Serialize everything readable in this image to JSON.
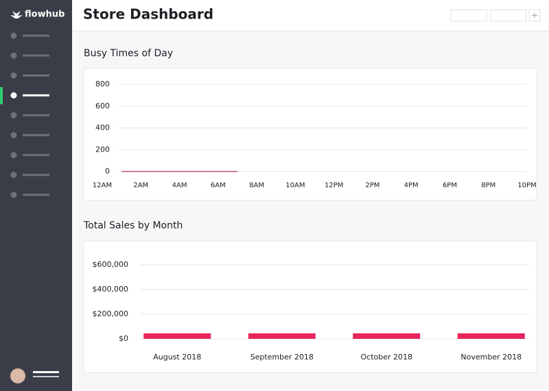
{
  "app": {
    "logo": "flowhub",
    "title": "Store Dashboard"
  },
  "chart_data": [
    {
      "type": "line",
      "title": "Busy Times of Day",
      "categories": [
        "12AM",
        null,
        "2AM",
        null,
        "4AM",
        null,
        "6AM",
        null,
        "8AM",
        null,
        "10AM",
        null,
        "12PM",
        null,
        "2PM",
        null,
        "4PM",
        null,
        "6PM",
        null,
        "8PM",
        null,
        "10PM",
        null
      ],
      "values": [
        null,
        0,
        0,
        0,
        0,
        0,
        0,
        0,
        null,
        null,
        null,
        null,
        null,
        null,
        null,
        null,
        null,
        null,
        null,
        null,
        null,
        null,
        null,
        null
      ],
      "color": "#b5506a",
      "ylim": [
        0,
        800
      ],
      "yticks": [
        0,
        200,
        400,
        600,
        800
      ],
      "grid": true
    },
    {
      "type": "bar",
      "title": "Total Sales by Month",
      "categories": [
        "August 2018",
        "September 2018",
        "October 2018",
        "November 2018"
      ],
      "values": [
        45000,
        45000,
        45000,
        45000
      ],
      "color": "#e8265e",
      "ylim": [
        0,
        600000
      ],
      "yticks": [
        {
          "value": 0,
          "label": "$0"
        },
        {
          "value": 200000,
          "label": "$200,000"
        },
        {
          "value": 400000,
          "label": "$400,000"
        },
        {
          "value": 600000,
          "label": "$600,000"
        }
      ],
      "grid": true
    }
  ]
}
